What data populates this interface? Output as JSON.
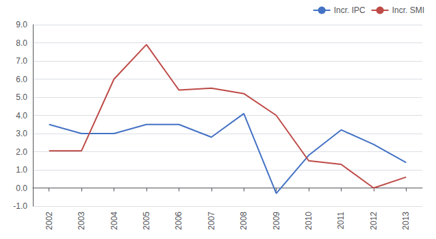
{
  "chart_data": {
    "type": "line",
    "x": [
      2002,
      2003,
      2004,
      2005,
      2006,
      2007,
      2008,
      2009,
      2010,
      2011,
      2012,
      2013
    ],
    "series": [
      {
        "name": "Incr. IPC",
        "color": "#4472C4",
        "values": [
          3.5,
          3.0,
          3.0,
          3.5,
          3.5,
          2.8,
          4.1,
          -0.3,
          1.8,
          3.2,
          2.4,
          1.4
        ]
      },
      {
        "name": "Incr. SMI",
        "color": "#BE4B48",
        "values": [
          2.05,
          2.05,
          6.0,
          7.9,
          5.4,
          5.5,
          5.2,
          4.0,
          1.5,
          1.3,
          0.0,
          0.6
        ]
      }
    ],
    "xlim": [
      2001.5,
      2013.5
    ],
    "xticks": [
      2002,
      2003,
      2004,
      2005,
      2006,
      2007,
      2008,
      2009,
      2010,
      2011,
      2012,
      2013
    ],
    "ylim": [
      -1.0,
      9.0
    ],
    "yticks": [
      {
        "value": -1.0,
        "label": "-1.0"
      },
      {
        "value": 0.0,
        "label": "0.0"
      },
      {
        "value": 1.0,
        "label": "1.0"
      },
      {
        "value": 2.0,
        "label": "2.0"
      },
      {
        "value": 3.0,
        "label": "3.0"
      },
      {
        "value": 4.0,
        "label": "4.0"
      },
      {
        "value": 5.0,
        "label": "5.0"
      },
      {
        "value": 6.0,
        "label": "6.0"
      },
      {
        "value": 7.0,
        "label": "7.0"
      },
      {
        "value": 8.0,
        "label": "8.0"
      },
      {
        "value": 9.0,
        "label": "9.0"
      }
    ],
    "grid": true,
    "legend": "upper right"
  }
}
